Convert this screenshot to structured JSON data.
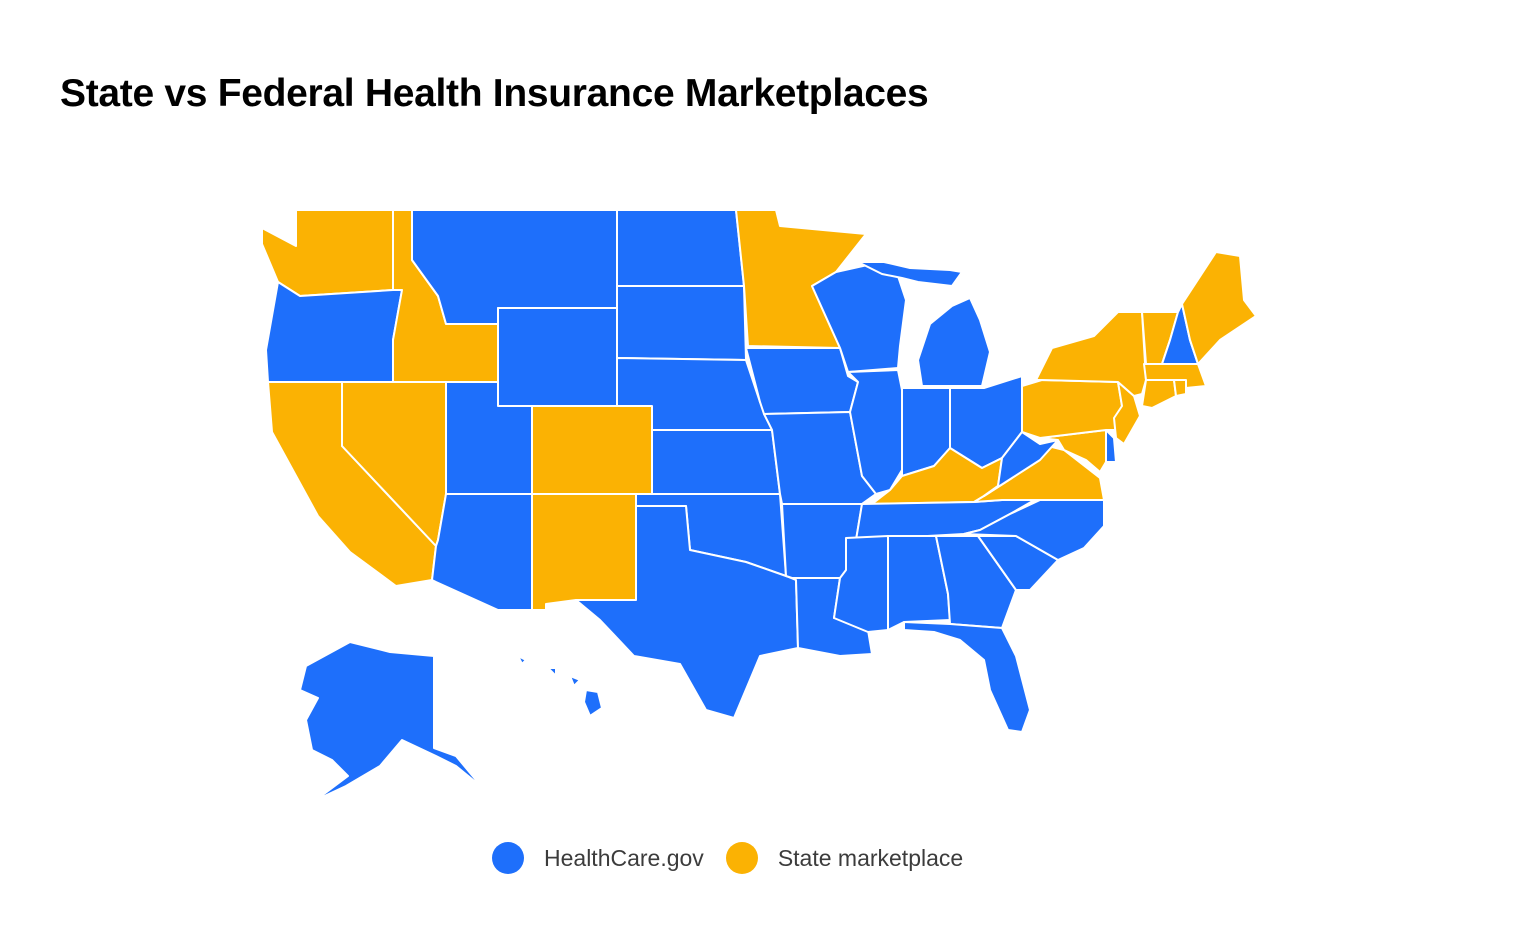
{
  "title": "State vs Federal Health Insurance Marketplaces",
  "colors": {
    "healthcare_gov": "#1e6ffb",
    "state_marketplace": "#fbb203",
    "border": "#ffffff"
  },
  "legend": [
    {
      "key": "healthcare_gov",
      "label": "HealthCare.gov"
    },
    {
      "key": "state_marketplace",
      "label": "State marketplace"
    }
  ],
  "chart_data": {
    "type": "choropleth",
    "categories": [
      "HealthCare.gov",
      "State marketplace"
    ],
    "states": [
      {
        "code": "WA",
        "category": "State marketplace"
      },
      {
        "code": "OR",
        "category": "HealthCare.gov"
      },
      {
        "code": "CA",
        "category": "State marketplace"
      },
      {
        "code": "NV",
        "category": "State marketplace"
      },
      {
        "code": "ID",
        "category": "State marketplace"
      },
      {
        "code": "MT",
        "category": "HealthCare.gov"
      },
      {
        "code": "WY",
        "category": "HealthCare.gov"
      },
      {
        "code": "UT",
        "category": "HealthCare.gov"
      },
      {
        "code": "AZ",
        "category": "HealthCare.gov"
      },
      {
        "code": "CO",
        "category": "State marketplace"
      },
      {
        "code": "NM",
        "category": "State marketplace"
      },
      {
        "code": "ND",
        "category": "HealthCare.gov"
      },
      {
        "code": "SD",
        "category": "HealthCare.gov"
      },
      {
        "code": "NE",
        "category": "HealthCare.gov"
      },
      {
        "code": "KS",
        "category": "HealthCare.gov"
      },
      {
        "code": "OK",
        "category": "HealthCare.gov"
      },
      {
        "code": "TX",
        "category": "HealthCare.gov"
      },
      {
        "code": "MN",
        "category": "State marketplace"
      },
      {
        "code": "IA",
        "category": "HealthCare.gov"
      },
      {
        "code": "MO",
        "category": "HealthCare.gov"
      },
      {
        "code": "AR",
        "category": "HealthCare.gov"
      },
      {
        "code": "LA",
        "category": "HealthCare.gov"
      },
      {
        "code": "WI",
        "category": "HealthCare.gov"
      },
      {
        "code": "IL",
        "category": "HealthCare.gov"
      },
      {
        "code": "MI",
        "category": "HealthCare.gov"
      },
      {
        "code": "IN",
        "category": "HealthCare.gov"
      },
      {
        "code": "OH",
        "category": "HealthCare.gov"
      },
      {
        "code": "KY",
        "category": "State marketplace"
      },
      {
        "code": "TN",
        "category": "HealthCare.gov"
      },
      {
        "code": "MS",
        "category": "HealthCare.gov"
      },
      {
        "code": "AL",
        "category": "HealthCare.gov"
      },
      {
        "code": "GA",
        "category": "HealthCare.gov"
      },
      {
        "code": "FL",
        "category": "HealthCare.gov"
      },
      {
        "code": "SC",
        "category": "HealthCare.gov"
      },
      {
        "code": "NC",
        "category": "HealthCare.gov"
      },
      {
        "code": "VA",
        "category": "State marketplace"
      },
      {
        "code": "WV",
        "category": "HealthCare.gov"
      },
      {
        "code": "MD",
        "category": "State marketplace"
      },
      {
        "code": "DE",
        "category": "HealthCare.gov"
      },
      {
        "code": "PA",
        "category": "State marketplace"
      },
      {
        "code": "NJ",
        "category": "State marketplace"
      },
      {
        "code": "NY",
        "category": "State marketplace"
      },
      {
        "code": "CT",
        "category": "State marketplace"
      },
      {
        "code": "RI",
        "category": "State marketplace"
      },
      {
        "code": "MA",
        "category": "State marketplace"
      },
      {
        "code": "VT",
        "category": "State marketplace"
      },
      {
        "code": "NH",
        "category": "HealthCare.gov"
      },
      {
        "code": "ME",
        "category": "State marketplace"
      },
      {
        "code": "AK",
        "category": "HealthCare.gov"
      },
      {
        "code": "HI",
        "category": "HealthCare.gov"
      }
    ]
  }
}
